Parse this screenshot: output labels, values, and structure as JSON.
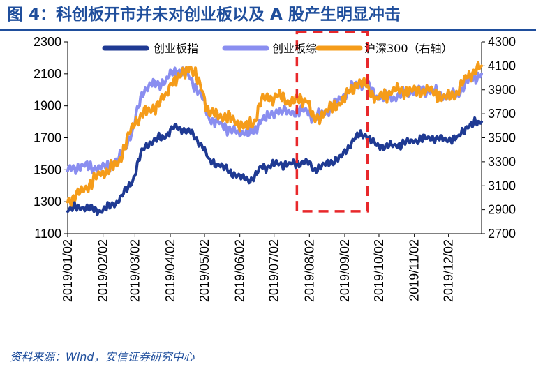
{
  "header": {
    "title": "图 4：科创板开市并未对创业板以及 A 股产生明显冲击"
  },
  "footer": {
    "source": "资料来源：Wind，安信证券研究中心"
  },
  "colors": {
    "title": "#1f4e9c",
    "series_cyb": "#1f3a93",
    "series_zonghe": "#8a8ef0",
    "series_hs300": "#f59c1a",
    "highlight_box": "#e8282b"
  },
  "chart_data": {
    "type": "line",
    "title": "科创板开市并未对创业板以及 A 股产生明显冲击",
    "xlabel": "",
    "ylabel_left": "",
    "ylabel_right": "",
    "ylim_left": [
      1100,
      2300
    ],
    "ylim_right": [
      2700,
      4300
    ],
    "y_ticks_left": [
      "1100",
      "1300",
      "1500",
      "1700",
      "1900",
      "2100",
      "2300"
    ],
    "y_ticks_right": [
      "2700",
      "2900",
      "3100",
      "3300",
      "3500",
      "3700",
      "3900",
      "4100",
      "4300"
    ],
    "x_range": [
      "2019/01/02",
      "2019/12/31"
    ],
    "x_ticks": [
      "2019/01/02",
      "2019/02/02",
      "2019/03/02",
      "2019/04/02",
      "2019/05/02",
      "2019/06/02",
      "2019/07/02",
      "2019/08/02",
      "2019/09/02",
      "2019/10/02",
      "2019/11/02",
      "2019/12/02"
    ],
    "legend_position": "top",
    "series": [
      {
        "name": "创业板指",
        "axis": "left",
        "points": [
          [
            "2019/01/02",
            1250
          ],
          [
            "2019/01/15",
            1265
          ],
          [
            "2019/01/31",
            1240
          ],
          [
            "2019/02/15",
            1300
          ],
          [
            "2019/02/28",
            1430
          ],
          [
            "2019/03/08",
            1620
          ],
          [
            "2019/03/15",
            1670
          ],
          [
            "2019/03/29",
            1710
          ],
          [
            "2019/04/03",
            1760
          ],
          [
            "2019/04/10",
            1760
          ],
          [
            "2019/04/19",
            1740
          ],
          [
            "2019/04/30",
            1650
          ],
          [
            "2019/05/06",
            1560
          ],
          [
            "2019/05/15",
            1530
          ],
          [
            "2019/05/31",
            1460
          ],
          [
            "2019/06/06",
            1445
          ],
          [
            "2019/06/14",
            1440
          ],
          [
            "2019/06/21",
            1520
          ],
          [
            "2019/06/28",
            1520
          ],
          [
            "2019/07/05",
            1540
          ],
          [
            "2019/07/15",
            1535
          ],
          [
            "2019/07/31",
            1550
          ],
          [
            "2019/08/06",
            1500
          ],
          [
            "2019/08/15",
            1530
          ],
          [
            "2019/08/30",
            1580
          ],
          [
            "2019/09/06",
            1650
          ],
          [
            "2019/09/12",
            1710
          ],
          [
            "2019/09/20",
            1720
          ],
          [
            "2019/09/30",
            1650
          ],
          [
            "2019/10/15",
            1650
          ],
          [
            "2019/10/31",
            1680
          ],
          [
            "2019/11/15",
            1700
          ],
          [
            "2019/11/29",
            1690
          ],
          [
            "2019/12/10",
            1700
          ],
          [
            "2019/12/18",
            1770
          ],
          [
            "2019/12/31",
            1800
          ]
        ]
      },
      {
        "name": "创业板综",
        "axis": "left",
        "points": [
          [
            "2019/01/02",
            1500
          ],
          [
            "2019/01/15",
            1525
          ],
          [
            "2019/01/31",
            1510
          ],
          [
            "2019/02/15",
            1560
          ],
          [
            "2019/02/28",
            1740
          ],
          [
            "2019/03/08",
            1980
          ],
          [
            "2019/03/15",
            2030
          ],
          [
            "2019/03/29",
            2050
          ],
          [
            "2019/04/03",
            2110
          ],
          [
            "2019/04/10",
            2120
          ],
          [
            "2019/04/19",
            2080
          ],
          [
            "2019/04/30",
            1950
          ],
          [
            "2019/05/06",
            1820
          ],
          [
            "2019/05/15",
            1790
          ],
          [
            "2019/05/31",
            1730
          ],
          [
            "2019/06/06",
            1735
          ],
          [
            "2019/06/14",
            1730
          ],
          [
            "2019/06/21",
            1820
          ],
          [
            "2019/06/28",
            1830
          ],
          [
            "2019/07/05",
            1870
          ],
          [
            "2019/07/15",
            1860
          ],
          [
            "2019/07/31",
            1870
          ],
          [
            "2019/08/06",
            1820
          ],
          [
            "2019/08/15",
            1850
          ],
          [
            "2019/08/30",
            1950
          ],
          [
            "2019/09/06",
            1990
          ],
          [
            "2019/09/12",
            2040
          ],
          [
            "2019/09/20",
            2040
          ],
          [
            "2019/09/30",
            1960
          ],
          [
            "2019/10/15",
            1950
          ],
          [
            "2019/10/31",
            1990
          ],
          [
            "2019/11/15",
            1990
          ],
          [
            "2019/11/29",
            1960
          ],
          [
            "2019/12/10",
            1970
          ],
          [
            "2019/12/18",
            2050
          ],
          [
            "2019/12/31",
            2100
          ]
        ]
      },
      {
        "name": "沪深300（右轴）",
        "axis": "right",
        "points": [
          [
            "2019/01/02",
            2970
          ],
          [
            "2019/01/15",
            3060
          ],
          [
            "2019/01/31",
            3200
          ],
          [
            "2019/02/15",
            3280
          ],
          [
            "2019/02/28",
            3600
          ],
          [
            "2019/03/08",
            3700
          ],
          [
            "2019/03/15",
            3720
          ],
          [
            "2019/03/29",
            3850
          ],
          [
            "2019/04/03",
            3970
          ],
          [
            "2019/04/10",
            4000
          ],
          [
            "2019/04/19",
            4100
          ],
          [
            "2019/04/30",
            3900
          ],
          [
            "2019/05/06",
            3700
          ],
          [
            "2019/05/15",
            3690
          ],
          [
            "2019/05/31",
            3630
          ],
          [
            "2019/06/06",
            3590
          ],
          [
            "2019/06/14",
            3620
          ],
          [
            "2019/06/21",
            3820
          ],
          [
            "2019/06/28",
            3830
          ],
          [
            "2019/07/05",
            3850
          ],
          [
            "2019/07/15",
            3800
          ],
          [
            "2019/07/31",
            3820
          ],
          [
            "2019/08/06",
            3640
          ],
          [
            "2019/08/15",
            3710
          ],
          [
            "2019/08/30",
            3800
          ],
          [
            "2019/09/06",
            3880
          ],
          [
            "2019/09/12",
            3950
          ],
          [
            "2019/09/20",
            3950
          ],
          [
            "2019/09/30",
            3820
          ],
          [
            "2019/10/15",
            3900
          ],
          [
            "2019/10/31",
            3890
          ],
          [
            "2019/11/15",
            3900
          ],
          [
            "2019/11/29",
            3830
          ],
          [
            "2019/12/10",
            3880
          ],
          [
            "2019/12/18",
            4010
          ],
          [
            "2019/12/31",
            4100
          ]
        ]
      }
    ],
    "annotations": [
      {
        "type": "dashed-rect",
        "x_range": [
          "2019/07/22",
          "2019/09/22"
        ],
        "y_range_left": [
          1240,
          2360
        ]
      }
    ]
  }
}
